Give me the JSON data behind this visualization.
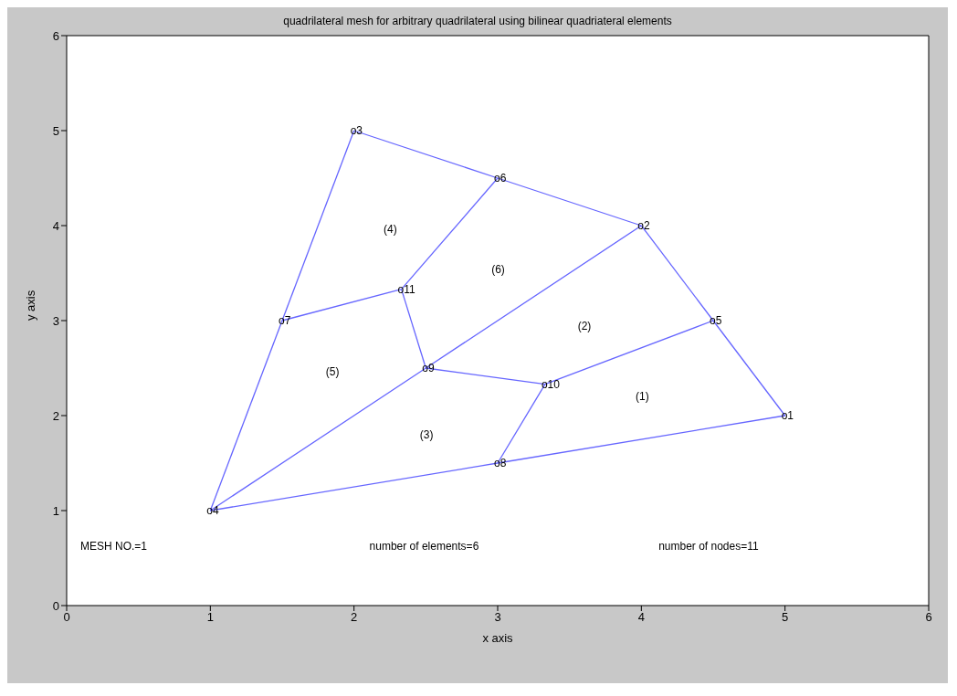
{
  "chart_data": {
    "type": "line",
    "title": "quadrilateral mesh for arbitrary quadrilateral  using  bilinear quadriateral elements",
    "xlabel": "x axis",
    "ylabel": "y axis",
    "xlim": [
      0,
      6
    ],
    "ylim": [
      0,
      6
    ],
    "xticks": [
      0,
      1,
      2,
      3,
      4,
      5,
      6
    ],
    "yticks": [
      0,
      1,
      2,
      3,
      4,
      5,
      6
    ],
    "grid": false,
    "series": [
      {
        "color": "#6666ff",
        "x": [
          1,
          3,
          5
        ],
        "values": [
          1,
          1.5,
          2
        ]
      },
      {
        "color": "#6666ff",
        "x": [
          4,
          4.5,
          5
        ],
        "values": [
          4,
          3,
          2
        ]
      },
      {
        "color": "#6666ff",
        "x": [
          2,
          3,
          4
        ],
        "values": [
          5,
          4.5,
          4
        ]
      },
      {
        "color": "#6666ff",
        "x": [
          1,
          1.5,
          2
        ],
        "values": [
          1,
          3,
          5
        ]
      },
      {
        "color": "#6666ff",
        "x": [
          1,
          2.5,
          4
        ],
        "values": [
          1,
          2.5,
          4
        ]
      },
      {
        "color": "#6666ff",
        "x": [
          3,
          3.33
        ],
        "values": [
          1.5,
          2.33
        ]
      },
      {
        "color": "#6666ff",
        "x": [
          3.33,
          4.5
        ],
        "values": [
          2.33,
          3
        ]
      },
      {
        "color": "#6666ff",
        "x": [
          2.5,
          3.33
        ],
        "values": [
          2.5,
          2.33
        ]
      },
      {
        "color": "#6666ff",
        "x": [
          2.33,
          2.5
        ],
        "values": [
          3.33,
          2.5
        ]
      },
      {
        "color": "#6666ff",
        "x": [
          1.5,
          2.33
        ],
        "values": [
          3,
          3.33
        ]
      },
      {
        "color": "#6666ff",
        "x": [
          2.33,
          3
        ],
        "values": [
          3.33,
          4.5
        ]
      }
    ],
    "annotations": [
      {
        "text": "o1",
        "x": 5,
        "y": 2
      },
      {
        "text": "o2",
        "x": 4,
        "y": 4
      },
      {
        "text": "o3",
        "x": 2,
        "y": 5
      },
      {
        "text": "o4",
        "x": 1,
        "y": 1
      },
      {
        "text": "o5",
        "x": 4.5,
        "y": 3
      },
      {
        "text": "o6",
        "x": 3,
        "y": 4.5
      },
      {
        "text": "o7",
        "x": 1.5,
        "y": 3
      },
      {
        "text": "o8",
        "x": 3,
        "y": 1.5
      },
      {
        "text": "o9",
        "x": 2.5,
        "y": 2.5
      },
      {
        "text": "o10",
        "x": 3.33,
        "y": 2.33
      },
      {
        "text": "o11",
        "x": 2.33,
        "y": 3.33
      },
      "(1)",
      "(2)",
      "(3)",
      "(4)",
      "(5)",
      "(6)",
      "MESH NO.=1",
      "number of elements=6",
      "number of nodes=11"
    ]
  }
}
